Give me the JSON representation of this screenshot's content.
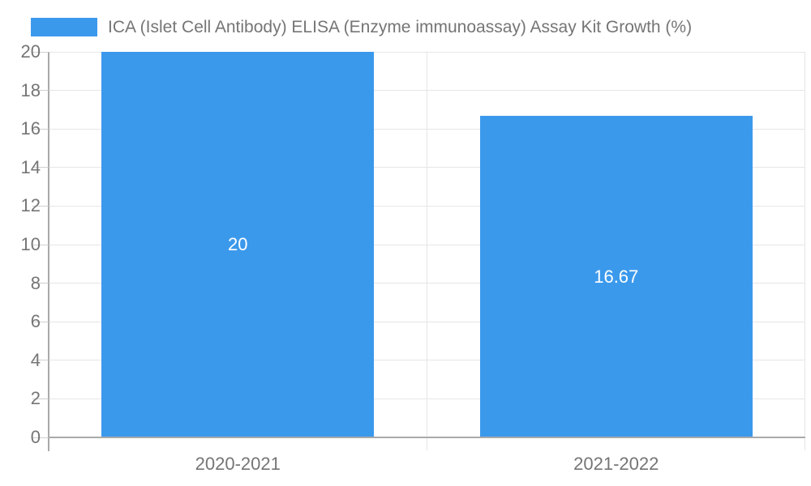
{
  "chart_data": {
    "type": "bar",
    "title": "ICA (Islet Cell Antibody) ELISA (Enzyme immunoassay) Assay Kit Growth (%)",
    "categories": [
      "2020-2021",
      "2021-2022"
    ],
    "values": [
      20,
      16.67
    ],
    "value_labels": [
      "20",
      "16.67"
    ],
    "xlabel": "",
    "ylabel": "",
    "ylim": [
      0,
      20
    ],
    "ytick_step": 2,
    "grid": true,
    "legend_position": "top-left",
    "colors": {
      "bar": "#3B99EC",
      "data_label": "#FFFFFF",
      "axis_text": "#757575",
      "gridline": "#E6E6E6",
      "axis_line": "#A9A9A9",
      "tick": "#CFCFCF",
      "background": "#FFFFFF"
    }
  }
}
